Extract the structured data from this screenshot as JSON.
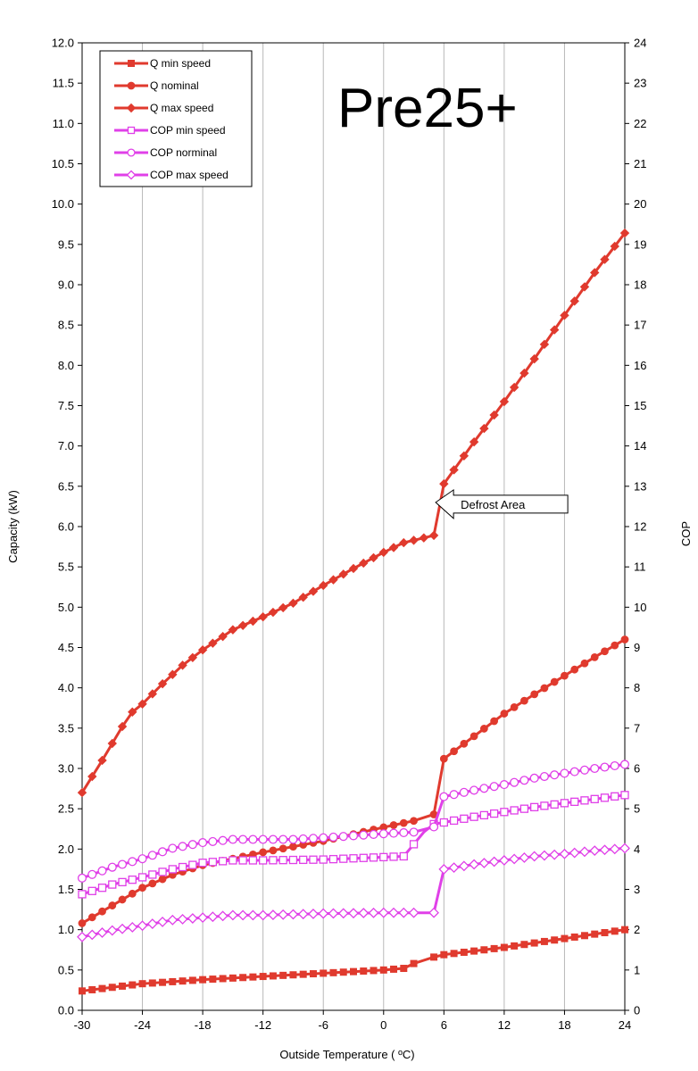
{
  "chart_data": {
    "type": "line",
    "title": "Pre25+",
    "xlabel": "Outside Temperature ( ºC)",
    "ylabel_left": "Capacity (kW)",
    "ylabel_right": "COP",
    "xlim": [
      -30,
      24
    ],
    "ylim_left": [
      0,
      12
    ],
    "ylim_right": [
      0,
      24
    ],
    "x_ticks": [
      "-30",
      "-24",
      "-18",
      "-12",
      "-6",
      "0",
      "6",
      "12",
      "18",
      "24"
    ],
    "y_left_ticks": [
      "0.0",
      "0.5",
      "1.0",
      "1.5",
      "2.0",
      "2.5",
      "3.0",
      "3.5",
      "4.0",
      "4.5",
      "5.0",
      "5.5",
      "6.0",
      "6.5",
      "7.0",
      "7.5",
      "8.0",
      "8.5",
      "9.0",
      "9.5",
      "10.0",
      "10.5",
      "11.0",
      "11.5",
      "12.0"
    ],
    "y_right_ticks": [
      "0",
      "1",
      "2",
      "3",
      "4",
      "5",
      "6",
      "7",
      "8",
      "9",
      "10",
      "11",
      "12",
      "13",
      "14",
      "15",
      "16",
      "17",
      "18",
      "19",
      "20",
      "21",
      "22",
      "23",
      "24"
    ],
    "grid": "vertical",
    "legend_position": "top-left",
    "annotation": {
      "text": "Defrost Area",
      "x": 9,
      "y": 6.3
    },
    "series": [
      {
        "name": "Q min speed",
        "axis": "left",
        "color": "#e03a2e",
        "marker": "square-filled",
        "points": [
          [
            -30,
            0.24
          ],
          [
            -24,
            0.33
          ],
          [
            -18,
            0.38
          ],
          [
            -12,
            0.42
          ],
          [
            -6,
            0.46
          ],
          [
            0,
            0.5
          ],
          [
            2,
            0.52
          ],
          [
            3,
            0.58
          ],
          [
            5,
            0.66
          ],
          [
            6,
            0.69
          ],
          [
            12,
            0.78
          ],
          [
            18,
            0.89
          ],
          [
            24,
            1.0
          ]
        ]
      },
      {
        "name": "Q nominal",
        "axis": "left",
        "color": "#e03a2e",
        "marker": "circle-filled",
        "points": [
          [
            -30,
            1.08
          ],
          [
            -27,
            1.3
          ],
          [
            -24,
            1.52
          ],
          [
            -21,
            1.68
          ],
          [
            -18,
            1.8
          ],
          [
            -15,
            1.88
          ],
          [
            -12,
            1.96
          ],
          [
            -6,
            2.1
          ],
          [
            0,
            2.27
          ],
          [
            3,
            2.35
          ],
          [
            5,
            2.43
          ],
          [
            6,
            3.12
          ],
          [
            9,
            3.4
          ],
          [
            12,
            3.68
          ],
          [
            15,
            3.92
          ],
          [
            18,
            4.15
          ],
          [
            21,
            4.38
          ],
          [
            24,
            4.6
          ]
        ]
      },
      {
        "name": "Q max speed",
        "axis": "left",
        "color": "#e03a2e",
        "marker": "diamond-filled",
        "points": [
          [
            -30,
            2.7
          ],
          [
            -28,
            3.1
          ],
          [
            -26,
            3.52
          ],
          [
            -25,
            3.7
          ],
          [
            -24,
            3.8
          ],
          [
            -22,
            4.05
          ],
          [
            -20,
            4.28
          ],
          [
            -18,
            4.47
          ],
          [
            -15,
            4.72
          ],
          [
            -12,
            4.88
          ],
          [
            -9,
            5.05
          ],
          [
            -6,
            5.27
          ],
          [
            -3,
            5.48
          ],
          [
            0,
            5.68
          ],
          [
            2,
            5.8
          ],
          [
            4,
            5.86
          ],
          [
            5,
            5.89
          ],
          [
            6,
            6.53
          ],
          [
            9,
            7.05
          ],
          [
            12,
            7.55
          ],
          [
            15,
            8.08
          ],
          [
            18,
            8.62
          ],
          [
            21,
            9.15
          ],
          [
            24,
            9.64
          ]
        ]
      },
      {
        "name": "COP min speed",
        "axis": "right",
        "color": "#e040e8",
        "marker": "square-open",
        "points": [
          [
            -30,
            2.88
          ],
          [
            -27,
            3.12
          ],
          [
            -24,
            3.3
          ],
          [
            -21,
            3.5
          ],
          [
            -18,
            3.66
          ],
          [
            -15,
            3.72
          ],
          [
            -12,
            3.72
          ],
          [
            -6,
            3.74
          ],
          [
            0,
            3.8
          ],
          [
            2,
            3.82
          ],
          [
            3,
            4.12
          ],
          [
            4,
            4.42
          ],
          [
            5,
            4.62
          ],
          [
            6,
            4.66
          ],
          [
            9,
            4.8
          ],
          [
            12,
            4.92
          ],
          [
            15,
            5.04
          ],
          [
            18,
            5.14
          ],
          [
            21,
            5.24
          ],
          [
            24,
            5.34
          ]
        ]
      },
      {
        "name": "COP norminal",
        "axis": "right",
        "color": "#e040e8",
        "marker": "circle-open",
        "points": [
          [
            -30,
            3.28
          ],
          [
            -27,
            3.55
          ],
          [
            -24,
            3.76
          ],
          [
            -21,
            4.02
          ],
          [
            -18,
            4.16
          ],
          [
            -15,
            4.24
          ],
          [
            -12,
            4.24
          ],
          [
            -9,
            4.24
          ],
          [
            -6,
            4.28
          ],
          [
            0,
            4.38
          ],
          [
            3,
            4.42
          ],
          [
            5,
            4.55
          ],
          [
            6,
            5.3
          ],
          [
            9,
            5.46
          ],
          [
            12,
            5.6
          ],
          [
            15,
            5.76
          ],
          [
            18,
            5.88
          ],
          [
            21,
            6.0
          ],
          [
            24,
            6.1
          ]
        ]
      },
      {
        "name": "COP max speed",
        "axis": "right",
        "color": "#e040e8",
        "marker": "diamond-open",
        "points": [
          [
            -30,
            1.82
          ],
          [
            -27,
            1.98
          ],
          [
            -24,
            2.1
          ],
          [
            -21,
            2.24
          ],
          [
            -18,
            2.3
          ],
          [
            -15,
            2.36
          ],
          [
            -12,
            2.36
          ],
          [
            -6,
            2.4
          ],
          [
            0,
            2.42
          ],
          [
            3,
            2.42
          ],
          [
            5,
            2.42
          ],
          [
            6,
            3.5
          ],
          [
            9,
            3.62
          ],
          [
            12,
            3.72
          ],
          [
            15,
            3.82
          ],
          [
            18,
            3.88
          ],
          [
            21,
            3.96
          ],
          [
            24,
            4.02
          ]
        ]
      }
    ]
  }
}
